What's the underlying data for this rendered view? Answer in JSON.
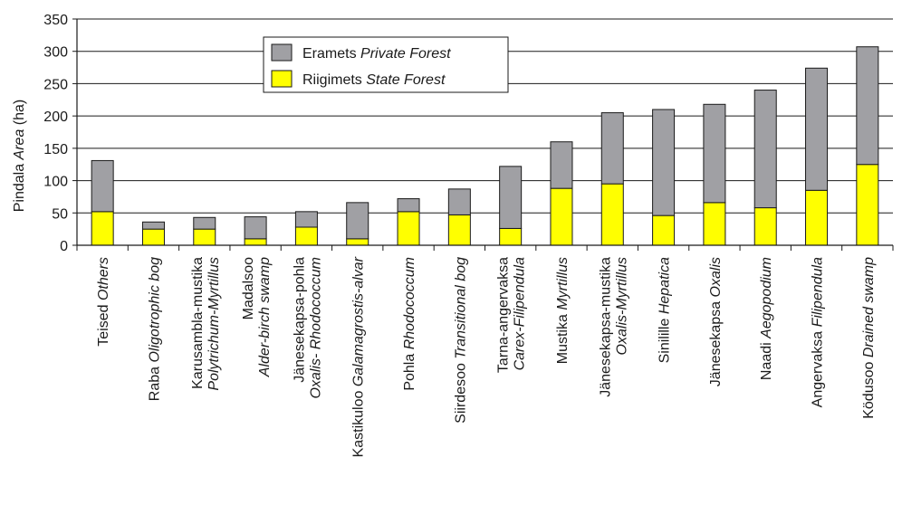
{
  "chart_data": {
    "type": "bar",
    "stacked": true,
    "ylabel": {
      "plain": "Pindala ",
      "italic": "Area",
      "rest": "  (ha)"
    },
    "ylim": [
      0,
      350
    ],
    "yticks": [
      0,
      50,
      100,
      150,
      200,
      250,
      300,
      350
    ],
    "grid": "horizontal",
    "legend_position": "top-center",
    "categories": [
      {
        "line1": [
          {
            "t": "Teised "
          },
          {
            "t": "Others",
            "i": true
          }
        ],
        "line2": []
      },
      {
        "line1": [
          {
            "t": "Raba "
          },
          {
            "t": "Oligotrophic bog",
            "i": true
          }
        ],
        "line2": []
      },
      {
        "line1": [
          {
            "t": "Karusambla-mustika"
          }
        ],
        "line2": [
          {
            "t": "Polytrichum-Myrtillus",
            "i": true
          }
        ]
      },
      {
        "line1": [
          {
            "t": "Madalsoo"
          }
        ],
        "line2": [
          {
            "t": "Alder-birch swamp",
            "i": true
          }
        ]
      },
      {
        "line1": [
          {
            "t": "Jänesekapsa-pohla"
          }
        ],
        "line2": [
          {
            "t": "Oxalis- Rhodococcum",
            "i": true
          }
        ]
      },
      {
        "line1": [
          {
            "t": "Kastikuloo "
          },
          {
            "t": "Galamagrostis-alvar",
            "i": true
          }
        ],
        "line2": []
      },
      {
        "line1": [
          {
            "t": "Pohla "
          },
          {
            "t": "Rhodococcum",
            "i": true
          }
        ],
        "line2": []
      },
      {
        "line1": [
          {
            "t": "Siirdesoo "
          },
          {
            "t": "Transitional bog",
            "i": true
          }
        ],
        "line2": []
      },
      {
        "line1": [
          {
            "t": "Tarna-angervaksa"
          }
        ],
        "line2": [
          {
            "t": "Carex-Filipendula",
            "i": true
          }
        ]
      },
      {
        "line1": [
          {
            "t": "Mustika "
          },
          {
            "t": "Myrtillus",
            "i": true
          }
        ],
        "line2": []
      },
      {
        "line1": [
          {
            "t": "Jänesekapsa-mustika"
          }
        ],
        "line2": [
          {
            "t": "Oxalis-Myrtillus",
            "i": true
          }
        ]
      },
      {
        "line1": [
          {
            "t": "Sinilille "
          },
          {
            "t": "Hepatica",
            "i": true
          }
        ],
        "line2": []
      },
      {
        "line1": [
          {
            "t": "Jänesekapsa "
          },
          {
            "t": "Oxalis",
            "i": true
          }
        ],
        "line2": []
      },
      {
        "line1": [
          {
            "t": "Naadi "
          },
          {
            "t": "Aegopodium",
            "i": true
          }
        ],
        "line2": []
      },
      {
        "line1": [
          {
            "t": "Angervaksa "
          },
          {
            "t": "Filipendula",
            "i": true
          }
        ],
        "line2": []
      },
      {
        "line1": [
          {
            "t": "Ködusoo "
          },
          {
            "t": "Drained swamp",
            "i": true
          }
        ],
        "line2": []
      }
    ],
    "series": [
      {
        "name": {
          "plain": "Riigimets ",
          "italic": "State Forest"
        },
        "color": "#ffff00",
        "values": [
          52,
          25,
          25,
          10,
          28,
          10,
          52,
          47,
          26,
          88,
          95,
          46,
          66,
          58,
          85,
          125
        ]
      },
      {
        "name": {
          "plain": "Eramets ",
          "italic": "Private Forest"
        },
        "color": "#a0a0a4",
        "values": [
          79,
          11,
          18,
          34,
          24,
          56,
          20,
          40,
          96,
          72,
          110,
          164,
          152,
          182,
          189,
          182
        ]
      }
    ]
  }
}
